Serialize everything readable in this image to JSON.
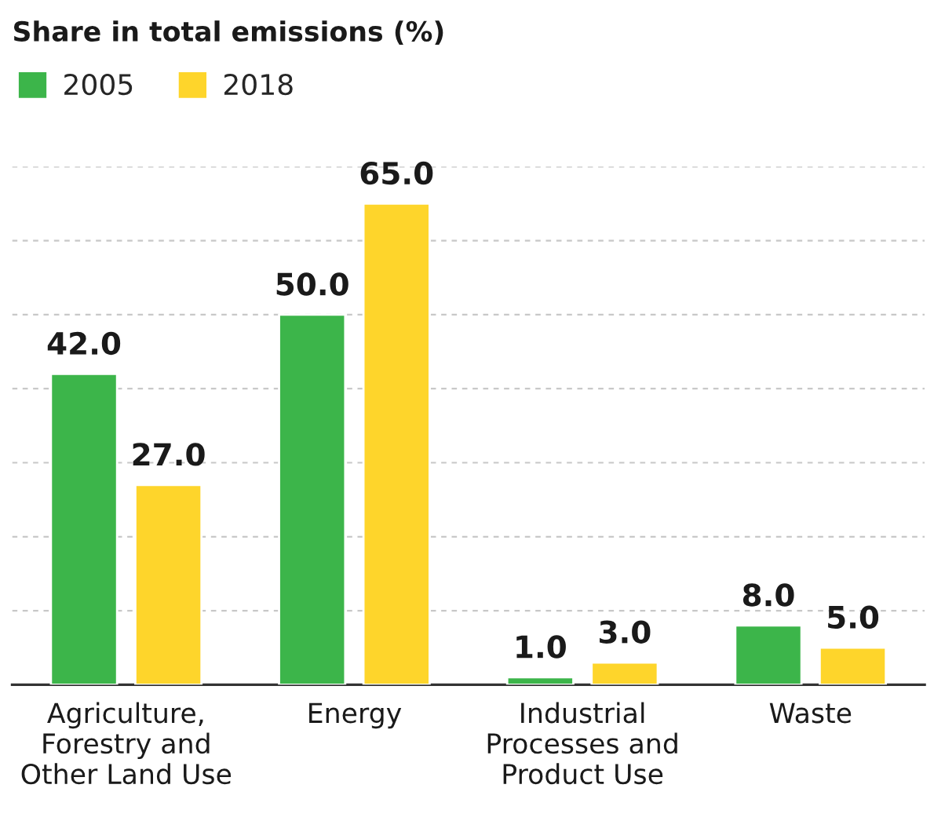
{
  "chart_data": {
    "type": "bar",
    "title": "Share in total emissions (%)",
    "categories": [
      "Agriculture,\nForestry and\nOther Land Use",
      "Energy",
      "Industrial\nProcesses and\nProduct Use",
      "Waste"
    ],
    "series": [
      {
        "name": "2005",
        "color": "#3cb54a",
        "values": [
          42.0,
          50.0,
          1.0,
          8.0
        ],
        "value_labels": [
          "42.0",
          "50.0",
          "1.0",
          "8.0"
        ]
      },
      {
        "name": "2018",
        "color": "#fed52b",
        "values": [
          27.0,
          65.0,
          3.0,
          5.0
        ],
        "value_labels": [
          "27.0",
          "65.0",
          "3.0",
          "5.0"
        ]
      }
    ],
    "ylim": [
      0,
      70
    ],
    "yticks": [
      {
        "value": 0,
        "label": null
      },
      {
        "value": 10,
        "label": null
      },
      {
        "value": 20,
        "label": null
      },
      {
        "value": 30,
        "label": null
      },
      {
        "value": 40,
        "label": null
      },
      {
        "value": 50,
        "label": null
      },
      {
        "value": 60,
        "label": null
      },
      {
        "value": 70,
        "label": null
      }
    ],
    "tick_labels": "x",
    "grid": "y",
    "legend": "top left"
  }
}
